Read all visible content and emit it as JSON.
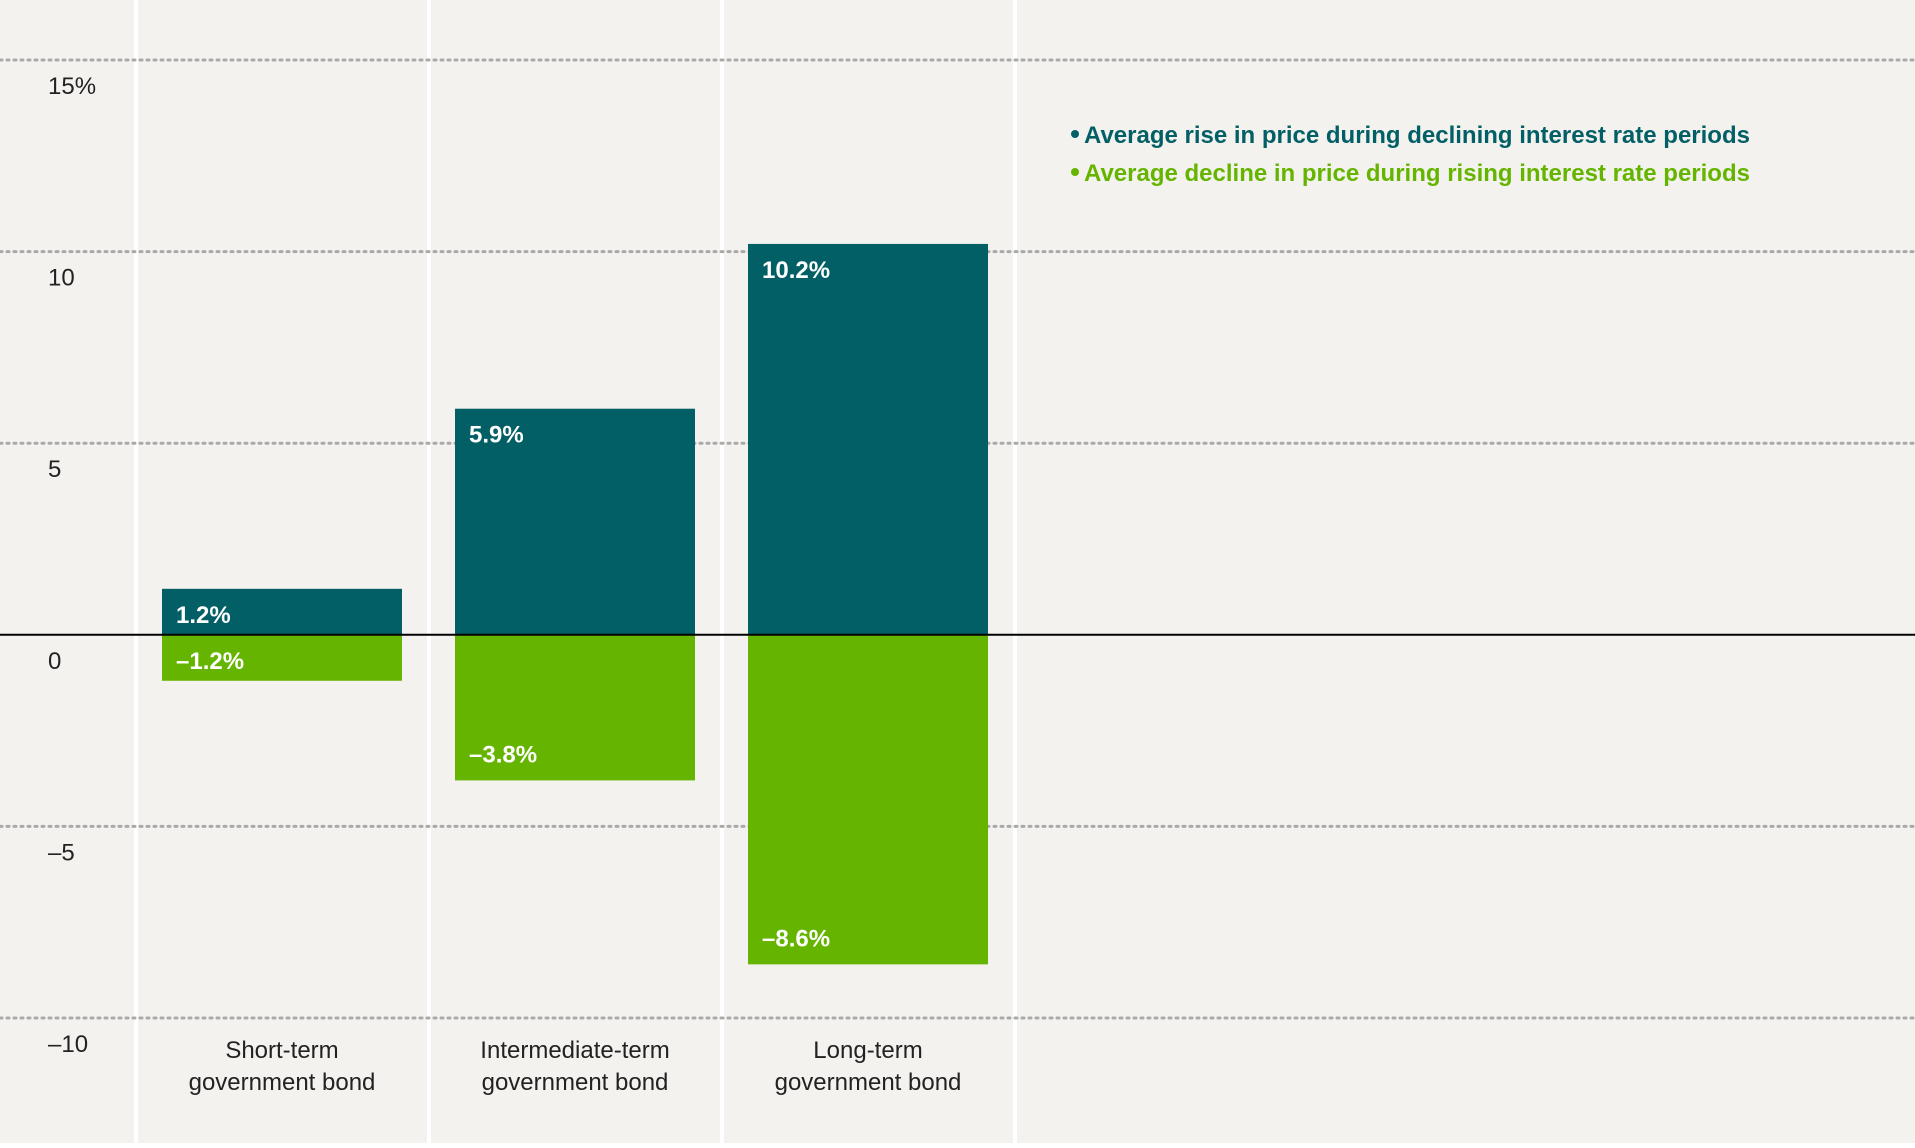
{
  "chart_data": {
    "type": "bar",
    "categories": [
      [
        "Short-term",
        "government bond"
      ],
      [
        "Intermediate-term",
        "government bond"
      ],
      [
        "Long-term",
        "government bond"
      ]
    ],
    "series": [
      {
        "name": "Average rise in price during declining interest rate periods",
        "values": [
          1.2,
          5.9,
          10.2
        ],
        "labels": [
          "1.2%",
          "5.9%",
          "10.2%"
        ],
        "color": "#035f66"
      },
      {
        "name": "Average decline in price during rising interest rate periods",
        "values": [
          -1.2,
          -3.8,
          -8.6
        ],
        "labels": [
          "–1.2%",
          "–3.8%",
          "–8.6%"
        ],
        "color": "#65b500"
      }
    ],
    "ylim": [
      -10,
      15
    ],
    "yticks": [
      15,
      10,
      5,
      0,
      -5,
      -10
    ],
    "ytick_labels": [
      "15%",
      "10",
      "5",
      "0",
      "–5",
      "–10"
    ],
    "grid": true,
    "legend_position": "top-right",
    "colors": {
      "background": "#f4f2ef",
      "gridline": "#a9a9a9",
      "zero_line": "#000000",
      "column_divider": "#ffffff",
      "text": "#222222",
      "bar_label": "#ffffff"
    }
  }
}
